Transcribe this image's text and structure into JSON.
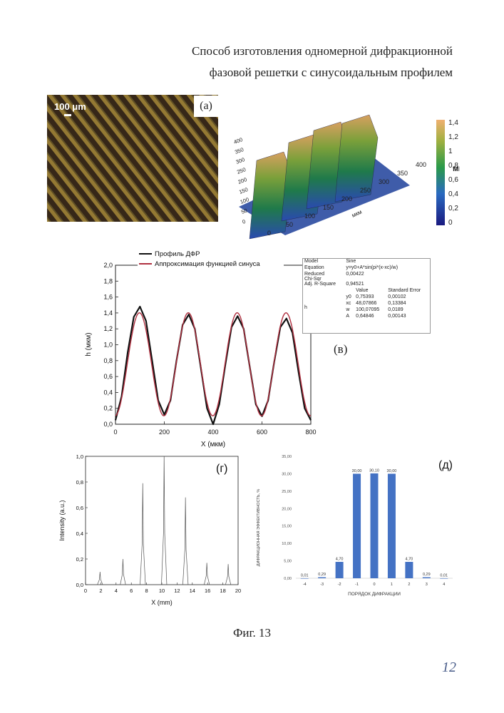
{
  "title": {
    "line1": "Способ изготовления одномерной дифракционной",
    "line2": "фазовой решетки с синусоидальным профилем"
  },
  "panel_a": {
    "label": "(а)",
    "scale_bar_text": "100 μm"
  },
  "panel_3d": {
    "colorbar_ticks": [
      "1,4",
      "1,2",
      "1",
      "0,8",
      "0,6",
      "0,4",
      "0,2",
      "0"
    ],
    "unit": "мкм",
    "y_ticks": [
      "400",
      "350",
      "300",
      "250",
      "200",
      "150",
      "100",
      "50",
      "0"
    ],
    "x_ticks": [
      "0",
      "50",
      "100",
      "150",
      "200",
      "250",
      "300",
      "350",
      "400"
    ],
    "x_unit": "мкм"
  },
  "panel_b": {
    "label": "(в)",
    "table": {
      "model_label": "Model",
      "model_value": "Sine",
      "equation_label": "Equation",
      "equation_value": "y=y0+A*sin(pi*(x-xc)/w)",
      "reduced_label_1": "Reduced",
      "reduced_label_2": "Chi-Sqr",
      "reduced_value": "0,00422",
      "adjr_label": "Adj. R-Square",
      "adjr_value": "0,94521",
      "col_value": "Value",
      "col_error": "Standard Error",
      "param_group": "h",
      "rows": [
        {
          "p": "y0",
          "v": "0,75393",
          "e": "0,00102"
        },
        {
          "p": "xc",
          "v": "48,07866",
          "e": "0,13384"
        },
        {
          "p": "w",
          "v": "100,07095",
          "e": "0,0189"
        },
        {
          "p": "A",
          "v": "0,64846",
          "e": "0,00143"
        }
      ]
    }
  },
  "chart_data": [
    {
      "type": "line",
      "xlabel": "X (мкм)",
      "ylabel": "h (мкм)",
      "xlim": [
        0,
        800
      ],
      "ylim": [
        0,
        2.0
      ],
      "x_ticks": [
        "0",
        "200",
        "400",
        "600",
        "800"
      ],
      "y_ticks": [
        "0,0",
        "0,2",
        "0,4",
        "0,6",
        "0,8",
        "1,0",
        "1,2",
        "1,4",
        "1,6",
        "1,8",
        "2,0"
      ],
      "legend_position": "top-left",
      "series": [
        {
          "name": "Профиль ДФР",
          "color": "#111111",
          "x": [
            0,
            25,
            50,
            75,
            100,
            125,
            150,
            175,
            200,
            225,
            250,
            275,
            300,
            325,
            350,
            375,
            400,
            425,
            450,
            475,
            500,
            525,
            550,
            575,
            600,
            625,
            650,
            675,
            700,
            725,
            750,
            775,
            800
          ],
          "y": [
            0.05,
            0.35,
            0.9,
            1.35,
            1.48,
            1.3,
            0.8,
            0.3,
            0.12,
            0.3,
            0.8,
            1.25,
            1.38,
            1.2,
            0.7,
            0.2,
            0.0,
            0.25,
            0.75,
            1.22,
            1.36,
            1.2,
            0.72,
            0.25,
            0.1,
            0.3,
            0.78,
            1.22,
            1.33,
            1.15,
            0.65,
            0.2,
            0.05
          ]
        },
        {
          "name": "Аппроксимация функцией синуса",
          "color": "#b03040",
          "x": "fit",
          "fit": {
            "y0": 0.75393,
            "xc": 48.07866,
            "w": 100.07095,
            "A": 0.64846
          }
        }
      ]
    },
    {
      "type": "line",
      "xlabel": "X (mm)",
      "ylabel": "Intensity (a.u.)",
      "xlim": [
        0,
        20
      ],
      "ylim": [
        0,
        1.0
      ],
      "x_ticks": [
        "0",
        "2",
        "4",
        "6",
        "8",
        "10",
        "12",
        "14",
        "16",
        "18",
        "20"
      ],
      "y_ticks": [
        "0,0",
        "0,2",
        "0,4",
        "0,6",
        "0,8",
        "1,0"
      ],
      "panel_label": "(г)",
      "peaks": [
        {
          "x": 1.9,
          "y": 0.1
        },
        {
          "x": 4.9,
          "y": 0.2
        },
        {
          "x": 7.5,
          "y": 0.79
        },
        {
          "x": 10.3,
          "y": 1.0
        },
        {
          "x": 13.1,
          "y": 0.68
        },
        {
          "x": 15.9,
          "y": 0.17
        },
        {
          "x": 18.7,
          "y": 0.16
        }
      ]
    },
    {
      "type": "bar",
      "panel_label": "(д)",
      "xlabel": "ПОРЯДОК ДИФРАКЦИИ",
      "ylabel": "ДИФРАКЦИОННАЯ ЭФФЕКТИВНОСТЬ, %",
      "ylim": [
        0,
        35
      ],
      "y_ticks": [
        "0,00",
        "5,00",
        "10,00",
        "15,00",
        "20,00",
        "25,00",
        "30,00",
        "35,00"
      ],
      "categories": [
        "-4",
        "-3",
        "-2",
        "-1",
        "0",
        "1",
        "2",
        "3",
        "4"
      ],
      "values": [
        0.01,
        0.29,
        4.7,
        30.0,
        30.1,
        30.0,
        4.7,
        0.29,
        0.01
      ],
      "value_labels": [
        "0,01",
        "0,29",
        "4,70",
        "30,00",
        "30,10",
        "30,00",
        "4,70",
        "0,29",
        "0,01"
      ],
      "color": "#4472c4"
    }
  ],
  "caption": "Фиг. 13",
  "page_number": "12"
}
